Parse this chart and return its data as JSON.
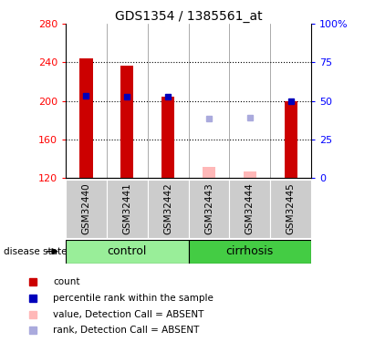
{
  "title": "GDS1354 / 1385561_at",
  "samples": [
    "GSM32440",
    "GSM32441",
    "GSM32442",
    "GSM32443",
    "GSM32444",
    "GSM32445"
  ],
  "ylim_left": [
    120,
    280
  ],
  "ylim_right": [
    0,
    100
  ],
  "yticks_left": [
    120,
    160,
    200,
    240,
    280
  ],
  "yticks_right": [
    0,
    25,
    50,
    75,
    100
  ],
  "ytick_labels_right": [
    "0",
    "25",
    "50",
    "75",
    "100%"
  ],
  "red_bars_present_idx": [
    0,
    1,
    2,
    5
  ],
  "red_bars_present_vals": [
    244,
    237,
    204,
    200
  ],
  "red_bars_absent_idx": [
    3,
    4
  ],
  "red_bars_absent_vals": [
    131,
    127
  ],
  "blue_sq_present_idx": [
    0,
    1,
    2,
    5
  ],
  "blue_sq_present_vals": [
    205,
    204,
    204,
    200
  ],
  "blue_sq_absent_idx": [
    3,
    4
  ],
  "blue_sq_absent_vals": [
    182,
    183
  ],
  "bar_width": 0.32,
  "red_color": "#cc0000",
  "red_absent_color": "#ffb8b8",
  "blue_color": "#0000bb",
  "blue_absent_color": "#aaaadd",
  "control_color": "#99ee99",
  "cirrhosis_color": "#44cc44",
  "sample_bg_color": "#cccccc",
  "hline_color": "black",
  "vline_color": "#888888",
  "legend_items": [
    [
      "#cc0000",
      "count"
    ],
    [
      "#0000bb",
      "percentile rank within the sample"
    ],
    [
      "#ffb8b8",
      "value, Detection Call = ABSENT"
    ],
    [
      "#aaaadd",
      "rank, Detection Call = ABSENT"
    ]
  ]
}
